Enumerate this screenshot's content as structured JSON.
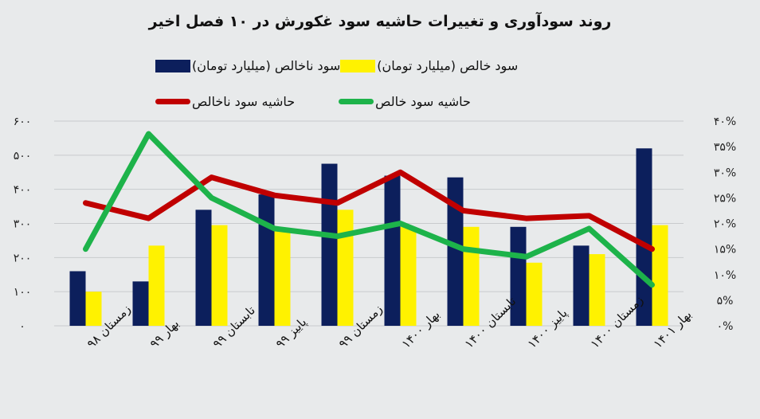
{
  "chart_data": {
    "type": "bar",
    "title": "روند سودآوری و تغییرات حاشیه سود غکورش در ۱۰ فصل اخیر",
    "categories": [
      "زمستان ۹۸",
      "بهار ۹۹",
      "تابستان ۹۹",
      "پاییز ۹۹",
      "زمستان ۹۹",
      "بهار ۱۴۰۰",
      "تابستان ۱۴۰۰",
      "پاییز ۱۴۰۰",
      "زمستان ۱۴۰۰",
      "بهار ۱۴۰۱"
    ],
    "series": [
      {
        "name": "سود ناخالص (میلیارد تومان)",
        "kind": "bar",
        "axis": "left",
        "color": "#0c1f5c",
        "values": [
          160,
          130,
          340,
          385,
          475,
          440,
          435,
          290,
          235,
          520
        ]
      },
      {
        "name": "سود خالص (میلیارد تومان)",
        "kind": "bar",
        "axis": "left",
        "color": "#fff200",
        "values": [
          100,
          235,
          295,
          280,
          340,
          290,
          290,
          185,
          210,
          295
        ]
      },
      {
        "name": "حاشیه سود ناخالص",
        "kind": "line",
        "axis": "right",
        "color": "#c00000",
        "values": [
          24,
          21,
          29,
          25.5,
          24,
          30,
          22.5,
          21,
          21.5,
          15
        ]
      },
      {
        "name": "حاشیه سود خالص",
        "kind": "line",
        "axis": "right",
        "color": "#1db34a",
        "values": [
          15,
          37.5,
          25,
          19,
          17.5,
          20,
          15,
          13.5,
          19,
          8
        ]
      }
    ],
    "left_axis": {
      "min": 0,
      "max": 600,
      "ticks": [
        "۰",
        "۱۰۰",
        "۲۰۰",
        "۳۰۰",
        "۴۰۰",
        "۵۰۰",
        "۶۰۰"
      ]
    },
    "right_axis": {
      "min": 0,
      "max": 40,
      "ticks": [
        "۰%",
        "۵%",
        "۱۰%",
        "۱۵%",
        "۲۰%",
        "۲۵%",
        "۳۰%",
        "۳۵%",
        "۴۰%"
      ]
    },
    "grid": true,
    "legend_position": "top"
  }
}
